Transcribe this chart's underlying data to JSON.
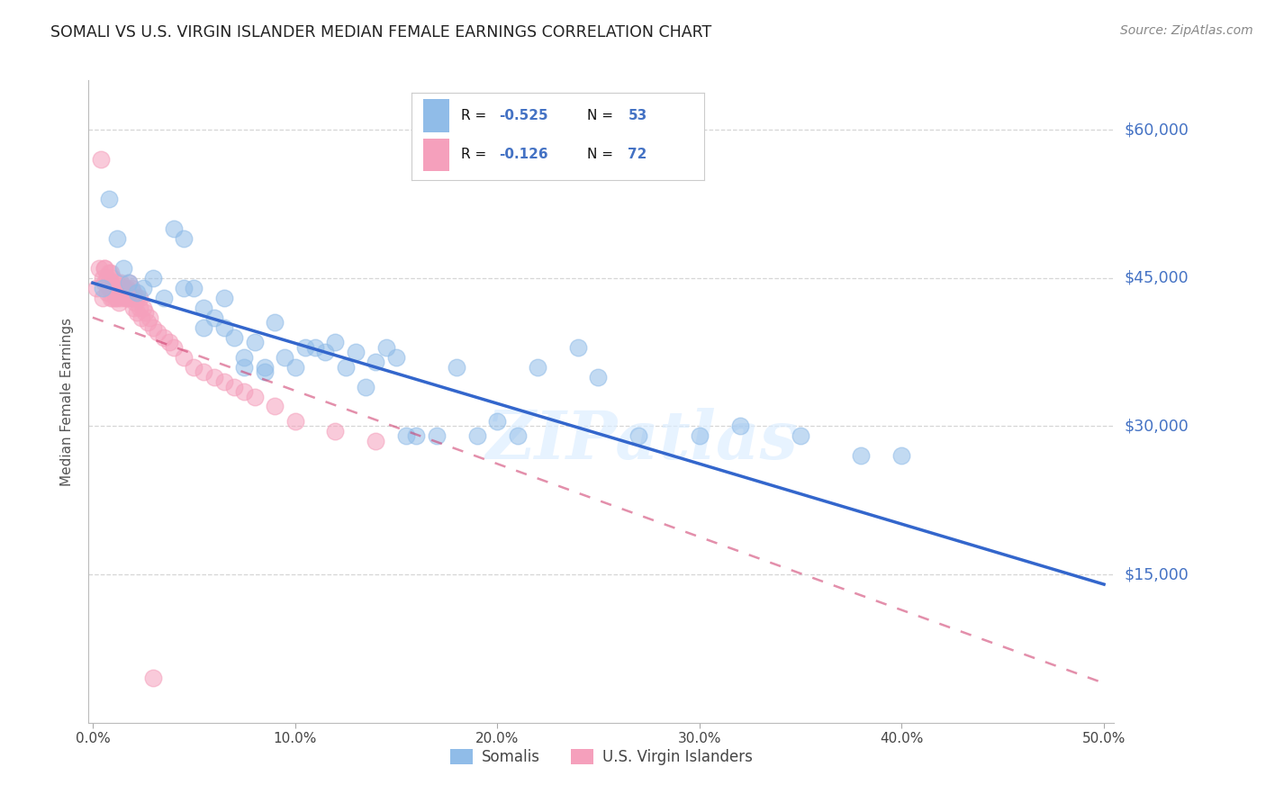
{
  "title": "SOMALI VS U.S. VIRGIN ISLANDER MEDIAN FEMALE EARNINGS CORRELATION CHART",
  "source": "Source: ZipAtlas.com",
  "ylabel": "Median Female Earnings",
  "xlabel_ticks": [
    "0.0%",
    "10.0%",
    "20.0%",
    "30.0%",
    "40.0%",
    "50.0%"
  ],
  "xlabel_vals": [
    0.0,
    0.1,
    0.2,
    0.3,
    0.4,
    0.5
  ],
  "ytick_labels": [
    "$60,000",
    "$45,000",
    "$30,000",
    "$15,000"
  ],
  "ytick_vals": [
    60000,
    45000,
    30000,
    15000
  ],
  "ylim": [
    0,
    65000
  ],
  "xlim": [
    -0.002,
    0.505
  ],
  "watermark": "ZIPatlas",
  "legend_label_somali": "Somalis",
  "legend_label_usvi": "U.S. Virgin Islanders",
  "somali_color": "#90bce8",
  "usvi_color": "#f5a0bc",
  "trendline_somali_color": "#3366cc",
  "trendline_usvi_color": "#cc3366",
  "background_color": "#ffffff",
  "grid_color": "#cccccc",
  "title_color": "#222222",
  "right_label_color": "#4472c4",
  "legend_r_color": "#000000",
  "legend_val_color": "#4472c4",
  "somali_trend_x": [
    0.0,
    0.5
  ],
  "somali_trend_y": [
    44500,
    14000
  ],
  "usvi_trend_x": [
    0.0,
    0.5
  ],
  "usvi_trend_y": [
    41000,
    4000
  ],
  "somali_x": [
    0.005,
    0.008,
    0.012,
    0.015,
    0.018,
    0.022,
    0.025,
    0.03,
    0.035,
    0.04,
    0.045,
    0.05,
    0.055,
    0.06,
    0.065,
    0.07,
    0.075,
    0.08,
    0.085,
    0.09,
    0.1,
    0.11,
    0.12,
    0.13,
    0.14,
    0.15,
    0.16,
    0.18,
    0.2,
    0.22,
    0.24,
    0.25,
    0.27,
    0.3,
    0.32,
    0.35,
    0.38,
    0.4,
    0.045,
    0.055,
    0.065,
    0.075,
    0.085,
    0.095,
    0.105,
    0.115,
    0.125,
    0.135,
    0.145,
    0.155,
    0.17,
    0.19,
    0.21
  ],
  "somali_y": [
    44000,
    53000,
    49000,
    46000,
    44500,
    43500,
    44000,
    45000,
    43000,
    50000,
    49000,
    44000,
    40000,
    41000,
    43000,
    39000,
    37000,
    38500,
    36000,
    40500,
    36000,
    38000,
    38500,
    37500,
    36500,
    37000,
    29000,
    36000,
    30500,
    36000,
    38000,
    35000,
    29000,
    29000,
    30000,
    29000,
    27000,
    27000,
    44000,
    42000,
    40000,
    36000,
    35500,
    37000,
    38000,
    37500,
    36000,
    34000,
    38000,
    29000,
    29000,
    29000,
    29000
  ],
  "usvi_x": [
    0.002,
    0.003,
    0.004,
    0.005,
    0.005,
    0.006,
    0.006,
    0.007,
    0.007,
    0.008,
    0.008,
    0.009,
    0.009,
    0.01,
    0.01,
    0.011,
    0.011,
    0.012,
    0.012,
    0.013,
    0.013,
    0.014,
    0.014,
    0.015,
    0.015,
    0.016,
    0.016,
    0.017,
    0.017,
    0.018,
    0.018,
    0.019,
    0.019,
    0.02,
    0.02,
    0.021,
    0.021,
    0.022,
    0.022,
    0.023,
    0.023,
    0.024,
    0.025,
    0.026,
    0.027,
    0.028,
    0.03,
    0.032,
    0.035,
    0.038,
    0.04,
    0.045,
    0.05,
    0.055,
    0.06,
    0.065,
    0.07,
    0.075,
    0.08,
    0.09,
    0.1,
    0.12,
    0.14,
    0.006,
    0.007,
    0.008,
    0.009,
    0.01,
    0.011,
    0.012,
    0.013,
    0.03
  ],
  "usvi_y": [
    44000,
    46000,
    57000,
    45000,
    43000,
    44500,
    46000,
    45000,
    43500,
    45500,
    44000,
    43000,
    44500,
    45000,
    43000,
    44000,
    43500,
    44500,
    43000,
    43500,
    44000,
    43000,
    44500,
    43500,
    44000,
    43000,
    44000,
    43000,
    44000,
    43000,
    44500,
    43000,
    44000,
    43500,
    42000,
    43000,
    42500,
    43000,
    41500,
    42000,
    43000,
    41000,
    42000,
    41500,
    40500,
    41000,
    40000,
    39500,
    39000,
    38500,
    38000,
    37000,
    36000,
    35500,
    35000,
    34500,
    34000,
    33500,
    33000,
    32000,
    30500,
    29500,
    28500,
    46000,
    45000,
    44500,
    45500,
    44000,
    43000,
    43500,
    42500,
    4500
  ]
}
